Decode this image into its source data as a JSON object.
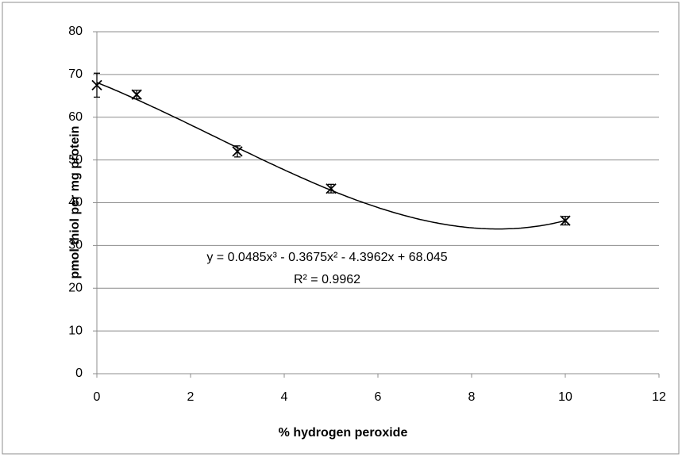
{
  "chart_data": {
    "type": "scatter",
    "x_label": "% hydrogen peroxide",
    "y_label": "pmol thiol per mg protein",
    "annotations": [
      "y = 0.0485x³ - 0.3675x² - 4.3962x + 68.045",
      "R² = 0.9962"
    ],
    "series": [
      {
        "name": "thiol",
        "color": "#000000",
        "x": [
          0,
          0.85,
          3,
          5,
          10
        ],
        "values": [
          67.5,
          65.3,
          52,
          43.3,
          35.8
        ],
        "errors": [
          2.8,
          1,
          1.3,
          1,
          1
        ]
      }
    ],
    "trendline": "polynomial",
    "trendline_degree": 3,
    "xlim": [
      0,
      12
    ],
    "xticks": [
      0,
      2,
      4,
      6,
      8,
      10,
      12
    ],
    "ylim": [
      0,
      80
    ],
    "yticks": [
      0,
      10,
      20,
      30,
      40,
      50,
      60,
      70,
      80
    ],
    "grid": true
  }
}
